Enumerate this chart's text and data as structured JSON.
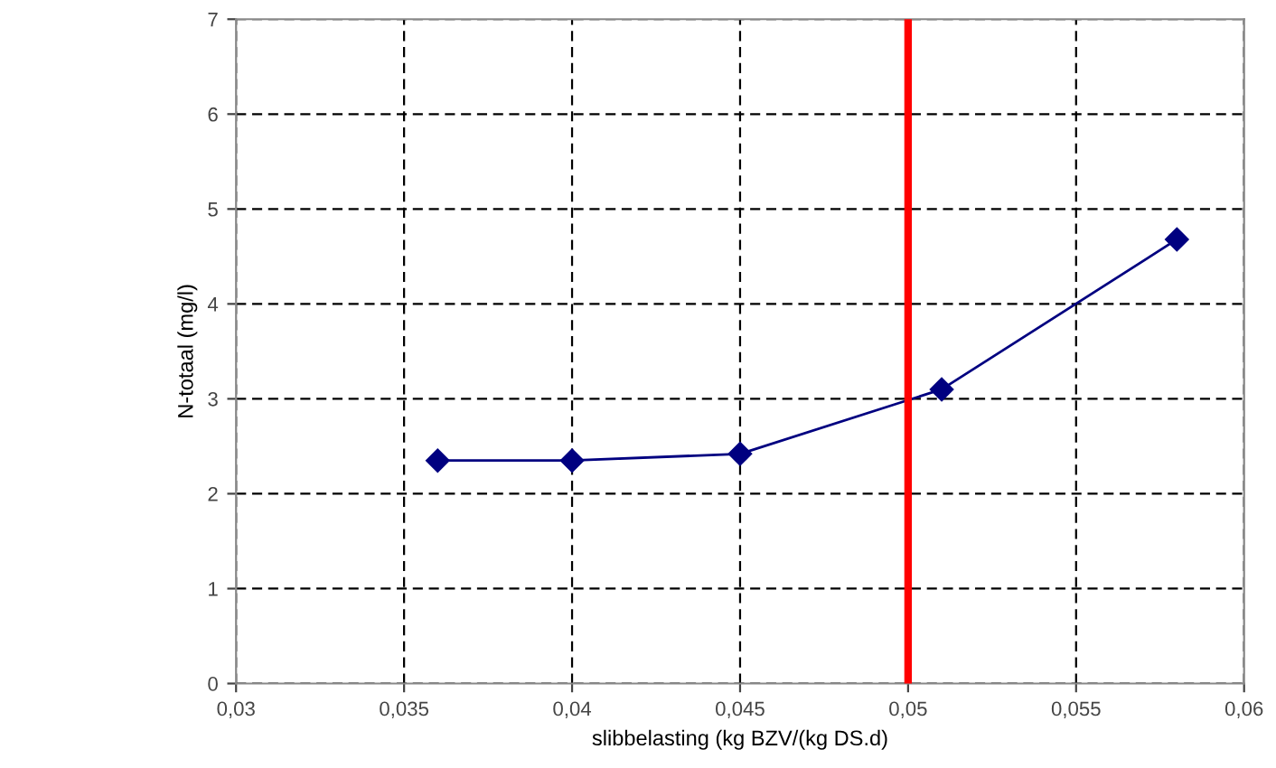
{
  "chart_data": {
    "type": "line",
    "xlabel": "slibbelasting (kg BZV/(kg DS.d)",
    "ylabel": "N-totaal (mg/l)",
    "series": [
      {
        "color": "#000080",
        "x": [
          0.036,
          0.04,
          0.045,
          0.051,
          0.058
        ],
        "values": [
          2.35,
          2.35,
          2.42,
          3.1,
          4.68
        ]
      }
    ],
    "xlim": [
      0.03,
      0.06
    ],
    "ylim": [
      0,
      7
    ],
    "xticks": [
      {
        "value": 0.03,
        "label": "0,03"
      },
      {
        "value": 0.035,
        "label": "0,035"
      },
      {
        "value": 0.04,
        "label": "0,04"
      },
      {
        "value": 0.045,
        "label": "0,045"
      },
      {
        "value": 0.05,
        "label": "0,05"
      },
      {
        "value": 0.055,
        "label": "0,055"
      },
      {
        "value": 0.06,
        "label": "0,06"
      }
    ],
    "yticks": [
      0,
      1,
      2,
      3,
      4,
      5,
      6,
      7
    ],
    "ref_lines": [
      {
        "axis": "x",
        "value": 0.05,
        "color": "#ff0000",
        "line_style": "solid"
      }
    ],
    "grid": true,
    "marker": "diamond",
    "line_style": "solid",
    "legend": false
  }
}
